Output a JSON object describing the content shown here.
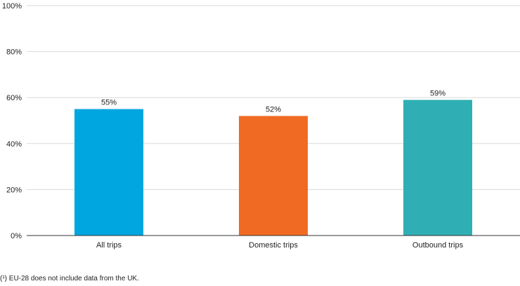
{
  "chart_data": {
    "type": "bar",
    "categories": [
      "All trips",
      "Domestic trips",
      "Outbound trips"
    ],
    "values": [
      55,
      52,
      59
    ],
    "value_labels": [
      "55%",
      "52%",
      "59%"
    ],
    "colors": [
      "#00A6E0",
      "#F06A23",
      "#2FAFB3"
    ],
    "ylim": [
      0,
      100
    ],
    "yticks": [
      0,
      20,
      40,
      60,
      80,
      100
    ],
    "ytick_labels": [
      "0%",
      "20%",
      "40%",
      "60%",
      "80%",
      "100%"
    ],
    "grid": true,
    "legend": "none"
  },
  "footnote": "(¹) EU-28 does not include data from the UK."
}
